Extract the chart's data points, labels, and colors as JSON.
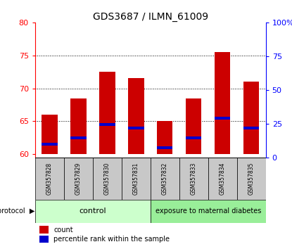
{
  "title": "GDS3687 / ILMN_61009",
  "samples": [
    "GSM357828",
    "GSM357829",
    "GSM357830",
    "GSM357831",
    "GSM357832",
    "GSM357833",
    "GSM357834",
    "GSM357835"
  ],
  "bar_tops": [
    66.0,
    68.5,
    72.5,
    71.5,
    65.0,
    68.5,
    75.5,
    71.0
  ],
  "blue_markers": [
    61.5,
    62.5,
    64.5,
    64.0,
    61.0,
    62.5,
    65.5,
    64.0
  ],
  "bar_color": "#cc0000",
  "blue_color": "#0000cc",
  "baseline": 60,
  "ylim_left": [
    59.5,
    80
  ],
  "ylim_right": [
    0,
    100
  ],
  "yticks_left": [
    60,
    65,
    70,
    75,
    80
  ],
  "yticks_right": [
    0,
    25,
    50,
    75,
    100
  ],
  "yticklabels_right": [
    "0",
    "25",
    "50",
    "75",
    "100%"
  ],
  "control_label": "control",
  "exposure_label": "exposure to maternal diabetes",
  "protocol_label": "protocol",
  "control_color": "#ccffcc",
  "exposure_color": "#99ee99",
  "legend_count": "count",
  "legend_percentile": "percentile rank within the sample",
  "bar_width": 0.55,
  "n_control": 4,
  "n_exposure": 4
}
